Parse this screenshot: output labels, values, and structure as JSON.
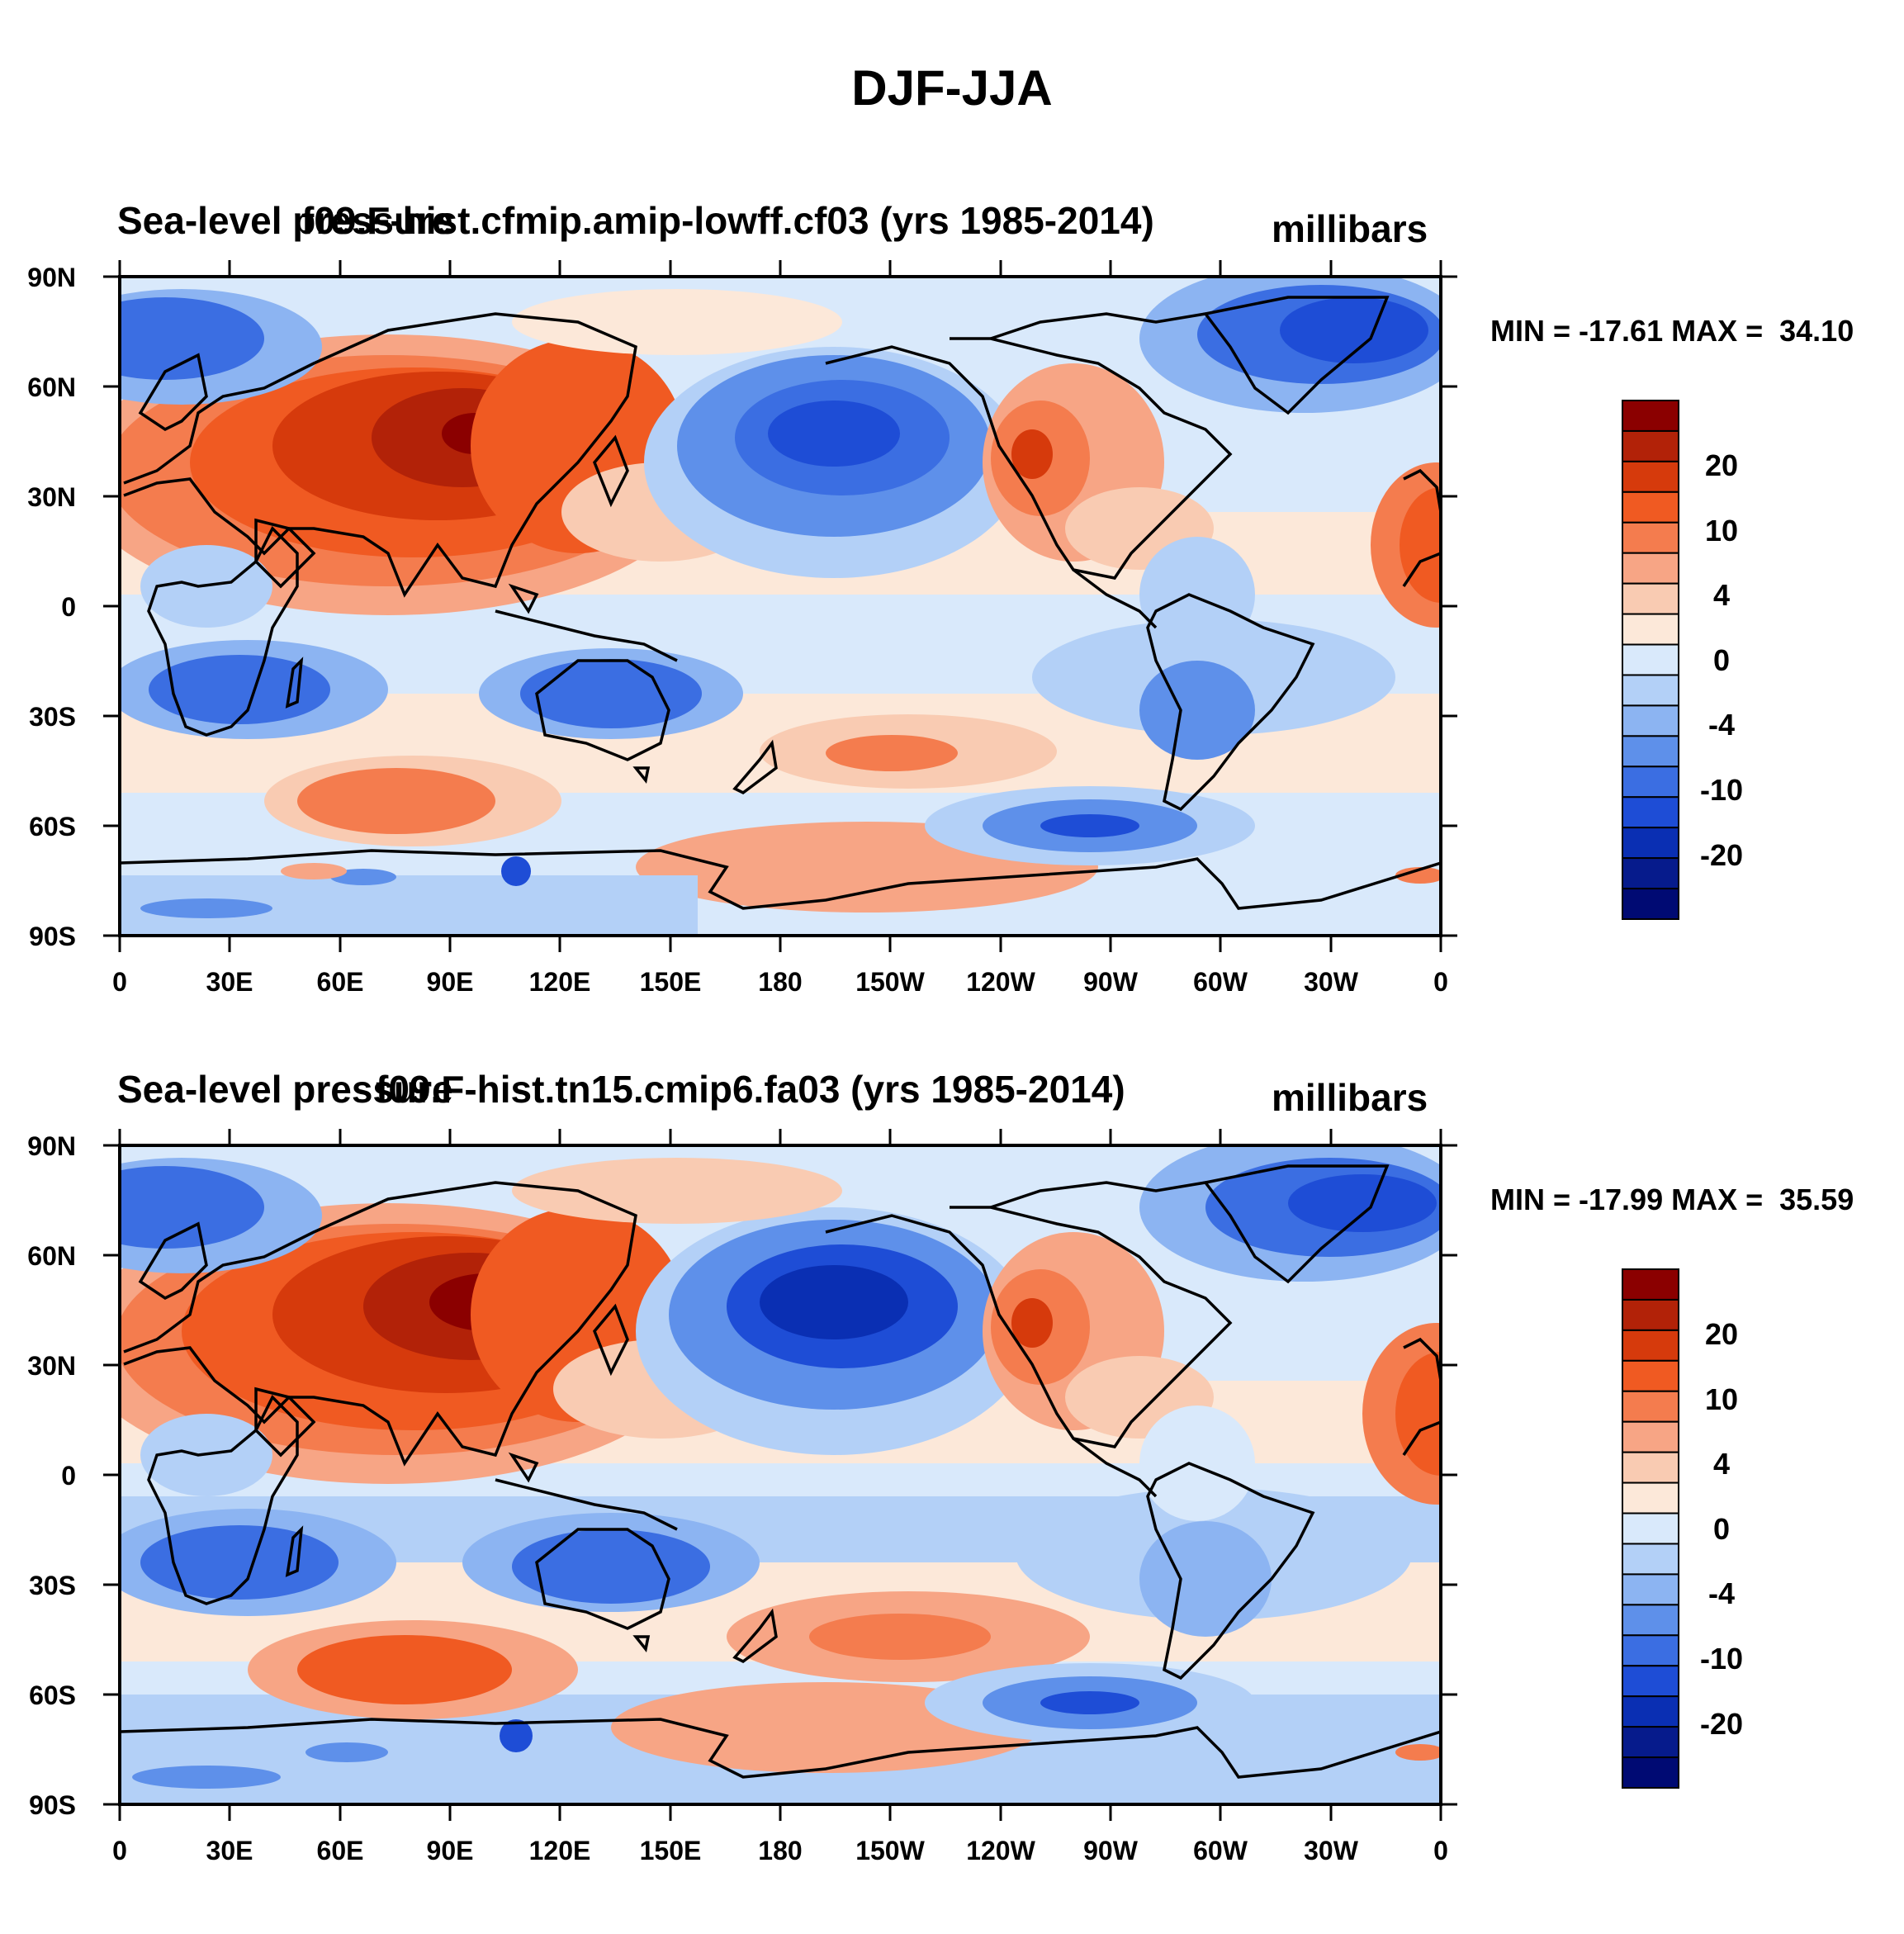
{
  "title": "DJF-JJA",
  "panels": [
    {
      "variable": "Sea-level pressure",
      "case": "f09.F-hist.cfmip.amip-lowff.cf03 (yrs 1985-2014)",
      "units": "millibars",
      "min_label": "MIN = -17.61",
      "max_label": "MAX =  34.10"
    },
    {
      "variable": "Sea-level pressure",
      "case": "f09.F-hist.tn15.cmip6.fa03 (yrs 1985-2014)",
      "units": "millibars",
      "min_label": "MIN = -17.99",
      "max_label": "MAX =  35.59"
    }
  ],
  "lat_labels": [
    "90N",
    "60N",
    "30N",
    "0",
    "30S",
    "60S",
    "90S"
  ],
  "lon_labels": [
    "0",
    "30E",
    "60E",
    "90E",
    "120E",
    "150E",
    "180",
    "150W",
    "120W",
    "90W",
    "60W",
    "30W",
    "0"
  ],
  "colorbar": {
    "labels": [
      "20",
      "10",
      "4",
      "0",
      "-4",
      "-10",
      "-20"
    ],
    "colors": [
      "#8b0000",
      "#b22208",
      "#d63a0c",
      "#f05a22",
      "#f47c4e",
      "#f7a585",
      "#f9cbb2",
      "#fce8d9",
      "#d9e9fb",
      "#b3d0f7",
      "#8cb4f2",
      "#5e90ea",
      "#3b6ee2",
      "#1e4dd6",
      "#0a2fb3",
      "#061b8c",
      "#000a73"
    ]
  }
}
